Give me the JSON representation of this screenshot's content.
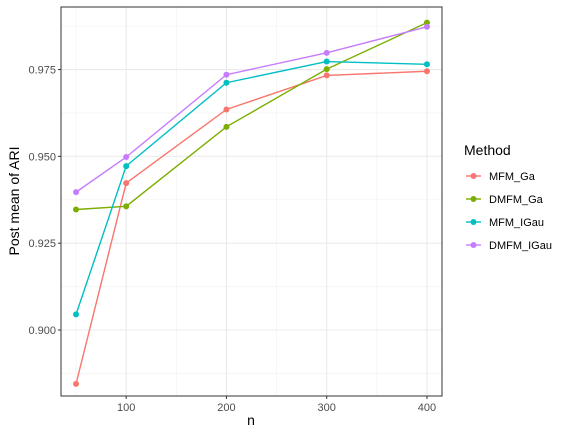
{
  "chart_data": {
    "type": "line",
    "title": "",
    "xlabel": "n",
    "ylabel": "Post mean of ARI",
    "x": [
      50,
      100,
      200,
      300,
      400
    ],
    "xlim": [
      35,
      415
    ],
    "ylim": [
      0.881,
      0.993
    ],
    "xticks": [
      100,
      200,
      300,
      400
    ],
    "xtick_labels": [
      "100",
      "200",
      "300",
      "400"
    ],
    "yticks": [
      0.9,
      0.925,
      0.95,
      0.975
    ],
    "ytick_labels": [
      "0.900",
      "0.925",
      "0.950",
      "0.975"
    ],
    "grid": true,
    "legend": {
      "title": "Method",
      "position": "right"
    },
    "series": [
      {
        "name": "MFM_Ga",
        "color": "#F8766D",
        "values": [
          0.8845,
          0.9423,
          0.9635,
          0.9733,
          0.9745
        ]
      },
      {
        "name": "DMFM_Ga",
        "color": "#7CAE00",
        "values": [
          0.9347,
          0.9356,
          0.9585,
          0.9751,
          0.9885
        ]
      },
      {
        "name": "MFM_IGau",
        "color": "#00BFC4",
        "values": [
          0.9045,
          0.9472,
          0.9712,
          0.9773,
          0.9765
        ]
      },
      {
        "name": "DMFM_IGau",
        "color": "#C77CFF",
        "values": [
          0.9397,
          0.9498,
          0.9735,
          0.9798,
          0.9873
        ]
      }
    ]
  }
}
